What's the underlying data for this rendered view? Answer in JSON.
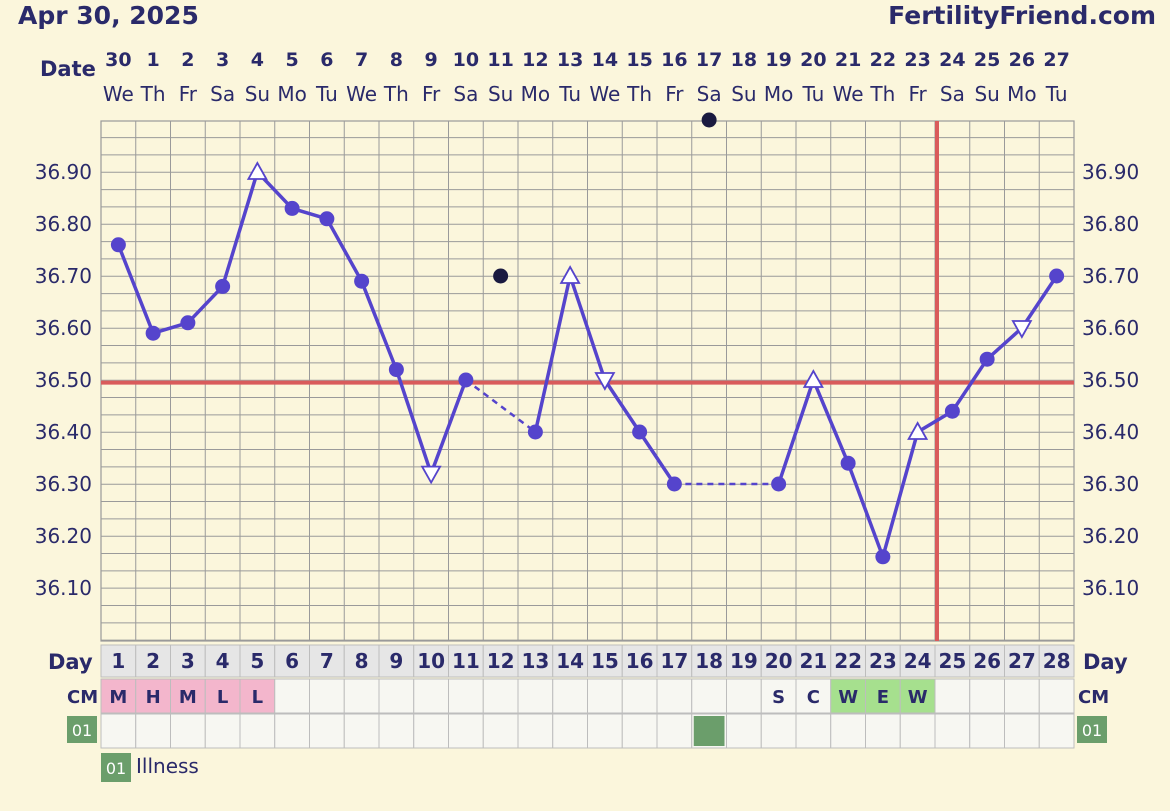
{
  "header": {
    "date": "Apr 30, 2025",
    "site": "FertilityFriend.com"
  },
  "labels": {
    "date": "Date",
    "day": "Day",
    "cm": "CM",
    "code": "01",
    "legend_code": "01",
    "legend_text": "Illness"
  },
  "colors": {
    "line": "#5544cc",
    "coverline": "#d95b5b",
    "ovulation": "#d95b5b",
    "menses": "#f3b6cc",
    "egg": "#a6e08e",
    "code": "#6b9e6b"
  },
  "chart_data": {
    "type": "line",
    "x_labels_date": [
      "30",
      "1",
      "2",
      "3",
      "4",
      "5",
      "6",
      "7",
      "8",
      "9",
      "10",
      "11",
      "12",
      "13",
      "14",
      "15",
      "16",
      "17",
      "18",
      "19",
      "20",
      "21",
      "22",
      "23",
      "24",
      "25",
      "26",
      "27"
    ],
    "x_labels_weekday": [
      "We",
      "Th",
      "Fr",
      "Sa",
      "Su",
      "Mo",
      "Tu",
      "We",
      "Th",
      "Fr",
      "Sa",
      "Su",
      "Mo",
      "Tu",
      "We",
      "Th",
      "Fr",
      "Sa",
      "Su",
      "Mo",
      "Tu",
      "We",
      "Th",
      "Fr",
      "Sa",
      "Su",
      "Mo",
      "Tu"
    ],
    "cycle_days": [
      "1",
      "2",
      "3",
      "4",
      "5",
      "6",
      "7",
      "8",
      "9",
      "10",
      "11",
      "12",
      "13",
      "14",
      "15",
      "16",
      "17",
      "18",
      "19",
      "20",
      "21",
      "22",
      "23",
      "24",
      "25",
      "26",
      "27",
      "28"
    ],
    "y_ticks": [
      "36.90",
      "36.80",
      "36.70",
      "36.60",
      "36.50",
      "36.40",
      "36.30",
      "36.20",
      "36.10"
    ],
    "ylim": [
      36.0,
      37.0
    ],
    "temps": [
      {
        "day": 1,
        "value": 36.76,
        "marker": "circle"
      },
      {
        "day": 2,
        "value": 36.59,
        "marker": "circle"
      },
      {
        "day": 3,
        "value": 36.61,
        "marker": "circle"
      },
      {
        "day": 4,
        "value": 36.68,
        "marker": "circle"
      },
      {
        "day": 5,
        "value": 36.9,
        "marker": "triangle-up"
      },
      {
        "day": 6,
        "value": 36.83,
        "marker": "circle"
      },
      {
        "day": 7,
        "value": 36.81,
        "marker": "circle"
      },
      {
        "day": 8,
        "value": 36.69,
        "marker": "circle"
      },
      {
        "day": 9,
        "value": 36.52,
        "marker": "circle"
      },
      {
        "day": 10,
        "value": 36.32,
        "marker": "triangle-down"
      },
      {
        "day": 11,
        "value": 36.5,
        "marker": "circle"
      },
      {
        "day": 13,
        "value": 36.4,
        "marker": "circle"
      },
      {
        "day": 14,
        "value": 36.7,
        "marker": "triangle-up"
      },
      {
        "day": 15,
        "value": 36.5,
        "marker": "triangle-down"
      },
      {
        "day": 16,
        "value": 36.4,
        "marker": "circle"
      },
      {
        "day": 17,
        "value": 36.3,
        "marker": "circle"
      },
      {
        "day": 20,
        "value": 36.3,
        "marker": "circle"
      },
      {
        "day": 21,
        "value": 36.5,
        "marker": "triangle-up"
      },
      {
        "day": 22,
        "value": 36.34,
        "marker": "circle"
      },
      {
        "day": 23,
        "value": 36.16,
        "marker": "circle"
      },
      {
        "day": 24,
        "value": 36.4,
        "marker": "triangle-up"
      },
      {
        "day": 25,
        "value": 36.44,
        "marker": "circle"
      },
      {
        "day": 26,
        "value": 36.54,
        "marker": "circle"
      },
      {
        "day": 27,
        "value": 36.6,
        "marker": "triangle-down"
      },
      {
        "day": 28,
        "value": 36.7,
        "marker": "circle"
      }
    ],
    "dashed_segments": [
      [
        11,
        13
      ],
      [
        17,
        20
      ]
    ],
    "discarded": [
      {
        "day": 12,
        "value": 36.7
      },
      {
        "day": 18,
        "value": 37.0
      }
    ],
    "coverline": 36.495,
    "ovulation_day": 25,
    "cm": [
      {
        "day": 1,
        "label": "M",
        "kind": "menses"
      },
      {
        "day": 2,
        "label": "H",
        "kind": "menses"
      },
      {
        "day": 3,
        "label": "M",
        "kind": "menses"
      },
      {
        "day": 4,
        "label": "L",
        "kind": "menses"
      },
      {
        "day": 5,
        "label": "L",
        "kind": "menses"
      },
      {
        "day": 20,
        "label": "S",
        "kind": "plain"
      },
      {
        "day": 21,
        "label": "C",
        "kind": "plain"
      },
      {
        "day": 22,
        "label": "W",
        "kind": "egg"
      },
      {
        "day": 23,
        "label": "E",
        "kind": "egg"
      },
      {
        "day": 24,
        "label": "W",
        "kind": "egg"
      }
    ],
    "illness_days": [
      18
    ]
  }
}
